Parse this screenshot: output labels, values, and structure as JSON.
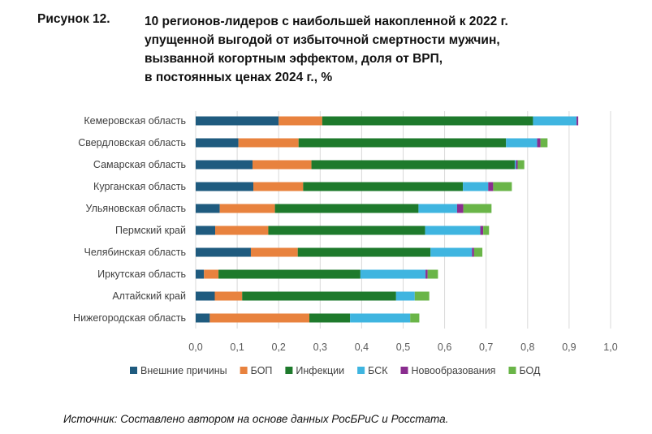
{
  "figure_label": "Рисунок 12.",
  "title_lines": [
    "10 регионов-лидеров с наибольшей накопленной к 2022 г.",
    "упущенной выгодой от избыточной смертности мужчин,",
    "вызванной когортным эффектом, доля от ВРП,",
    "в постоянных ценах 2024 г., %"
  ],
  "source": "Источник: Составлено автором на основе данных РосБРиС и Росстата.",
  "chart_data": {
    "type": "bar",
    "orientation": "horizontal",
    "stacked": true,
    "title": "10 регионов-лидеров с наибольшей накопленной к 2022 г. упущенной выгодой от избыточной смертности мужчин, вызванной когортным эффектом, доля от ВРП, в постоянных ценах 2024 г., %",
    "xlim": [
      0,
      1.0
    ],
    "xticks": [
      "0,0",
      "0,1",
      "0,2",
      "0,3",
      "0,4",
      "0,5",
      "0,6",
      "0,7",
      "0,8",
      "0,9",
      "1,0"
    ],
    "grid": true,
    "legend_position": "bottom",
    "categories": [
      "Кемеровская область",
      "Свердловская область",
      "Самарская область",
      "Курганская область",
      "Ульяновская область",
      "Пермский край",
      "Челябинская область",
      "Иркутская область",
      "Алтайский край",
      "Нижегородская область"
    ],
    "series": [
      {
        "name": "Внешние причины",
        "color": "#1f5b7f",
        "values": [
          0.2,
          0.103,
          0.137,
          0.139,
          0.058,
          0.047,
          0.133,
          0.02,
          0.046,
          0.034
        ]
      },
      {
        "name": "БОП",
        "color": "#e8823e",
        "values": [
          0.105,
          0.145,
          0.142,
          0.12,
          0.133,
          0.128,
          0.113,
          0.035,
          0.066,
          0.24
        ]
      },
      {
        "name": "Инфекции",
        "color": "#1e7a2c",
        "values": [
          0.508,
          0.5,
          0.49,
          0.385,
          0.346,
          0.378,
          0.32,
          0.342,
          0.371,
          0.098
        ]
      },
      {
        "name": "БСК",
        "color": "#3fb5e0",
        "values": [
          0.105,
          0.075,
          0.003,
          0.061,
          0.093,
          0.133,
          0.1,
          0.157,
          0.045,
          0.145
        ]
      },
      {
        "name": "Новообразования",
        "color": "#8a2d8f",
        "values": [
          0.004,
          0.008,
          0.004,
          0.012,
          0.015,
          0.007,
          0.005,
          0.005,
          0.0,
          0.0
        ]
      },
      {
        "name": "БОД",
        "color": "#6ab548",
        "values": [
          0.0,
          0.017,
          0.016,
          0.045,
          0.068,
          0.014,
          0.02,
          0.025,
          0.035,
          0.022
        ]
      }
    ]
  }
}
